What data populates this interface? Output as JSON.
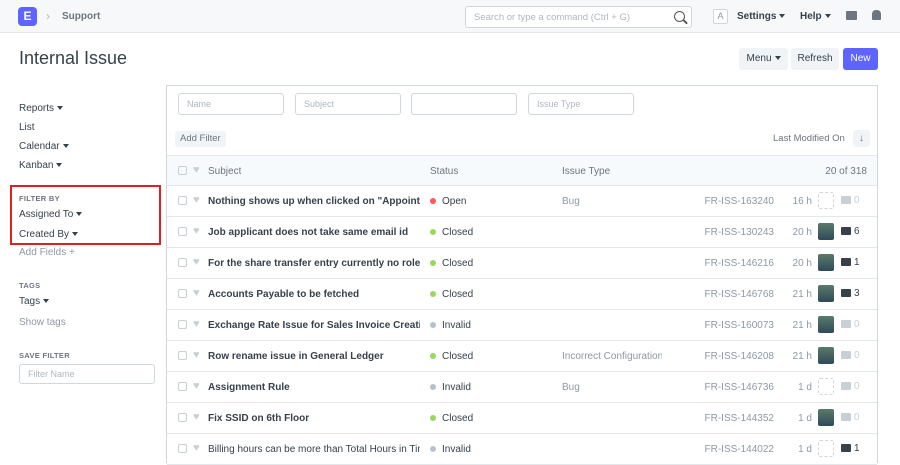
{
  "topbar": {
    "logo": "E",
    "breadcrumb": "Support",
    "search_placeholder": "Search or type a command (Ctrl + G)",
    "avatar": "A",
    "settings": "Settings",
    "help": "Help"
  },
  "page": {
    "title": "Internal Issue",
    "menu": "Menu",
    "refresh": "Refresh",
    "new": "New",
    "accent": "#5e64ff"
  },
  "sidebar": {
    "reports": "Reports",
    "list": "List",
    "calendar": "Calendar",
    "kanban": "Kanban",
    "filter_by": "FILTER BY",
    "assigned_to": "Assigned To",
    "created_by": "Created By",
    "add_fields": "Add Fields +",
    "tags_heading": "TAGS",
    "tags": "Tags",
    "show_tags": "Show tags",
    "save_filter": "SAVE FILTER",
    "filter_name_placeholder": "Filter Name"
  },
  "filters": {
    "name": "Name",
    "subject": "Subject",
    "blank": "",
    "issue_type": "Issue Type",
    "add_filter": "Add Filter",
    "sort": "Last Modified On"
  },
  "table": {
    "headers": {
      "subject": "Subject",
      "status": "Status",
      "issue_type": "Issue Type",
      "count": "20 of 318"
    },
    "rows": [
      {
        "subject": "Nothing shows up when clicked on \"Appointment",
        "status": "Open",
        "status_color": "#ff5858",
        "type": "Bug",
        "id": "FR-ISS-163240",
        "time": "16 h",
        "avatar": false,
        "comments": "0",
        "read": false
      },
      {
        "subject": "Job applicant does not take same email id",
        "status": "Closed",
        "status_color": "#98d85b",
        "type": "",
        "id": "FR-ISS-130243",
        "time": "20 h",
        "avatar": true,
        "comments": "6",
        "read": false
      },
      {
        "subject": "For the share transfer entry currently no role has",
        "status": "Closed",
        "status_color": "#98d85b",
        "type": "",
        "id": "FR-ISS-146216",
        "time": "20 h",
        "avatar": true,
        "comments": "1",
        "read": false
      },
      {
        "subject": "Accounts Payable to be fetched",
        "status": "Closed",
        "status_color": "#98d85b",
        "type": "",
        "id": "FR-ISS-146768",
        "time": "21 h",
        "avatar": true,
        "comments": "3",
        "read": false
      },
      {
        "subject": "Exchange Rate Issue for Sales Invoice Creation",
        "status": "Invalid",
        "status_color": "#b8c2cc",
        "type": "",
        "id": "FR-ISS-160073",
        "time": "21 h",
        "avatar": true,
        "comments": "0",
        "read": false
      },
      {
        "subject": "Row rename issue in General Ledger",
        "status": "Closed",
        "status_color": "#98d85b",
        "type": "Incorrect Configuration",
        "id": "FR-ISS-146208",
        "time": "21 h",
        "avatar": true,
        "comments": "0",
        "read": false
      },
      {
        "subject": "Assignment Rule",
        "status": "Invalid",
        "status_color": "#b8c2cc",
        "type": "Bug",
        "id": "FR-ISS-146736",
        "time": "1 d",
        "avatar": false,
        "comments": "0",
        "read": false
      },
      {
        "subject": "Fix SSID on 6th Floor",
        "status": "Closed",
        "status_color": "#98d85b",
        "type": "",
        "id": "FR-ISS-144352",
        "time": "1 d",
        "avatar": true,
        "comments": "0",
        "read": false
      },
      {
        "subject": "Billing hours can be more than Total Hours in Timesheet",
        "status": "Invalid",
        "status_color": "#b8c2cc",
        "type": "",
        "id": "FR-ISS-144022",
        "time": "1 d",
        "avatar": false,
        "comments": "1",
        "read": true
      }
    ]
  }
}
